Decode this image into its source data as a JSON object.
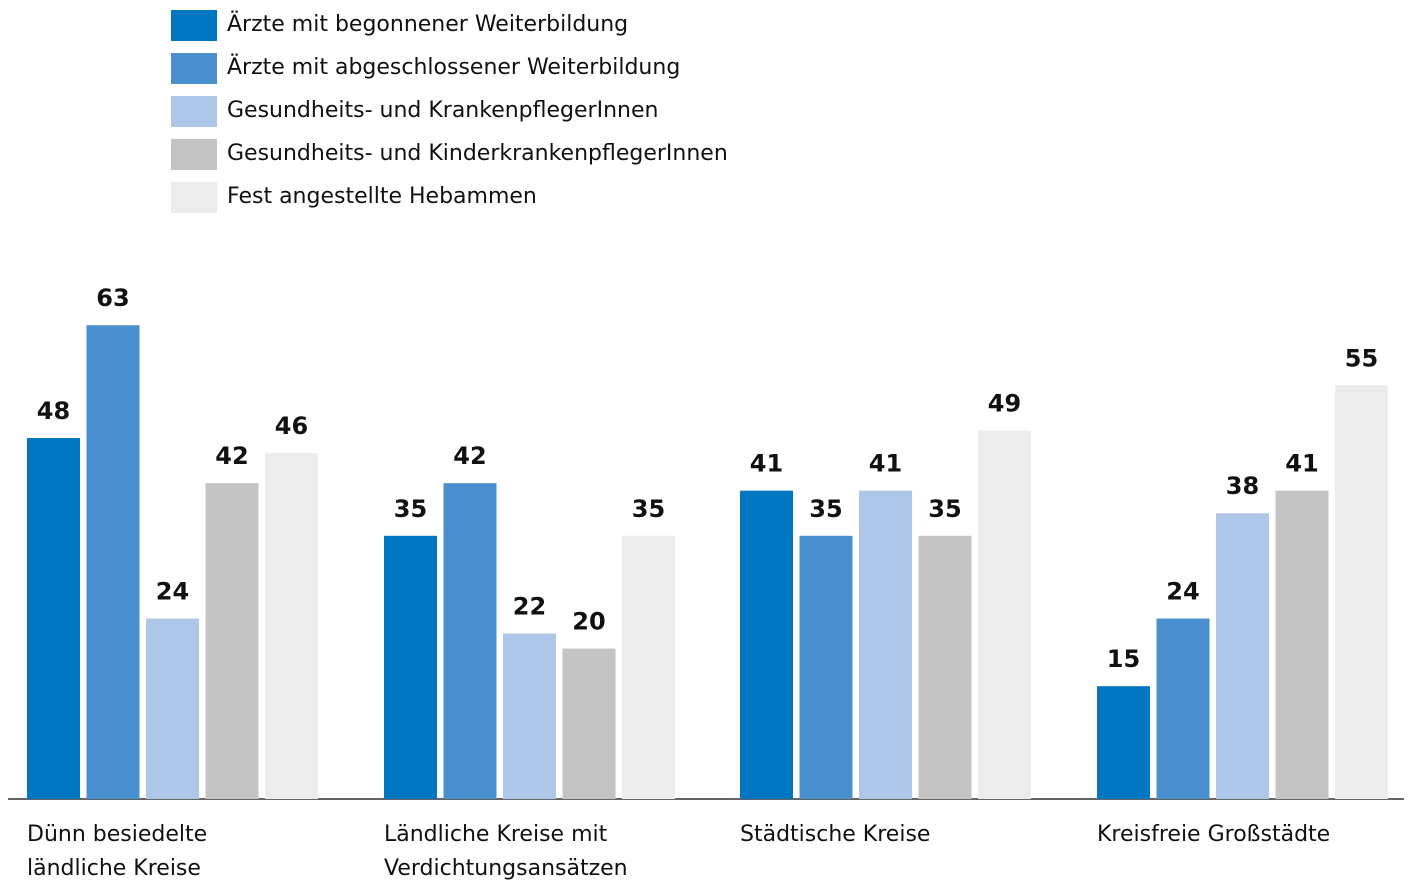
{
  "chart_data": {
    "type": "bar",
    "categories": [
      "Dünn besiedelte ländliche Kreise",
      "Ländliche Kreise mit Verdichtungsansätzen",
      "Städtische Kreise",
      "Kreisfreie Großstädte"
    ],
    "series": [
      {
        "name": "Ärzte mit begonnener Weiterbildung",
        "color": "#0077c0",
        "values": [
          48,
          35,
          41,
          15
        ]
      },
      {
        "name": "Ärzte mit abgeschlossener Weiterbildung",
        "color": "#4a90cf",
        "values": [
          63,
          42,
          35,
          24
        ]
      },
      {
        "name": "Gesundheits- und KrankenpflegerInnen",
        "color": "#aec6e8",
        "values": [
          24,
          22,
          41,
          38
        ]
      },
      {
        "name": "Gesundheits- und KinderkrankenpflegerInnen",
        "color": "#c4c4c4",
        "values": [
          42,
          20,
          35,
          41
        ]
      },
      {
        "name": "Fest angestellte Hebammen",
        "color": "#ececec",
        "values": [
          46,
          35,
          49,
          55
        ]
      }
    ],
    "legend": "top-left"
  }
}
